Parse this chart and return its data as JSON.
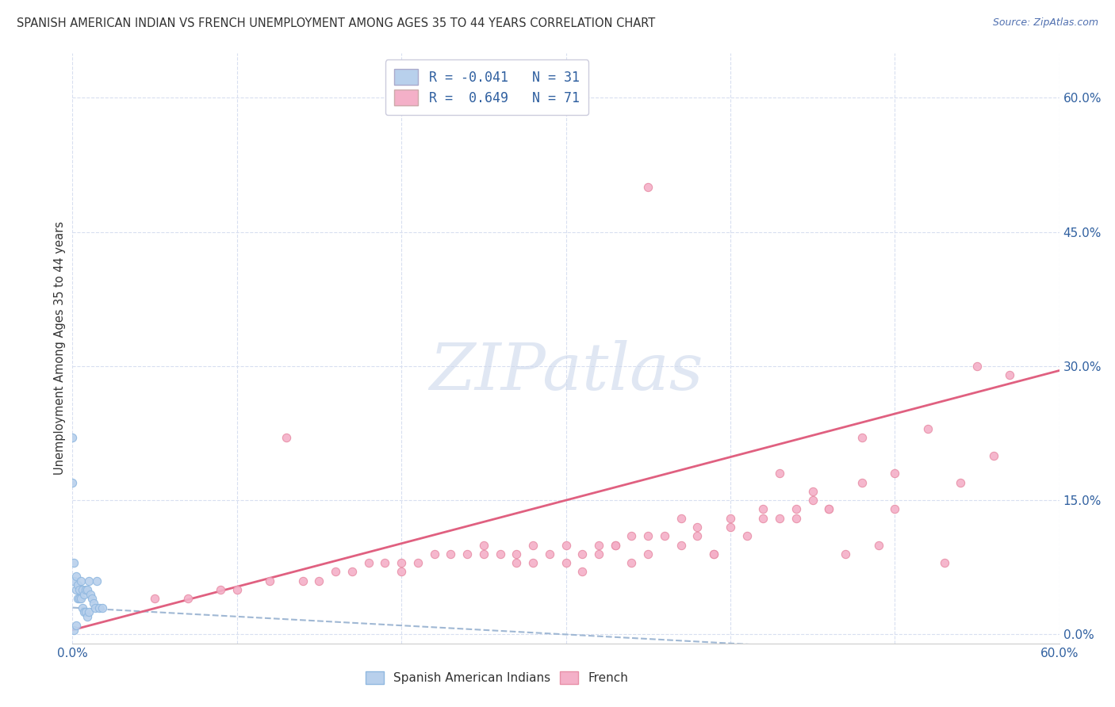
{
  "title": "SPANISH AMERICAN INDIAN VS FRENCH UNEMPLOYMENT AMONG AGES 35 TO 44 YEARS CORRELATION CHART",
  "source": "Source: ZipAtlas.com",
  "ylabel": "Unemployment Among Ages 35 to 44 years",
  "xlim": [
    0.0,
    0.6
  ],
  "ylim": [
    -0.01,
    0.65
  ],
  "plot_ylim": [
    -0.01,
    0.65
  ],
  "xticks": [
    0.0,
    0.1,
    0.2,
    0.3,
    0.4,
    0.5,
    0.6
  ],
  "xticklabels": [
    "0.0%",
    "",
    "",
    "",
    "",
    "",
    "60.0%"
  ],
  "right_yticks": [
    0.0,
    0.15,
    0.3,
    0.45,
    0.6
  ],
  "right_yticklabels": [
    "0.0%",
    "15.0%",
    "30.0%",
    "45.0%",
    "60.0%"
  ],
  "background_color": "#ffffff",
  "grid_color": "#d8dff0",
  "watermark": "ZIPatlas",
  "watermark_color": "#ccd8ec",
  "legend_line1": "R = -0.041   N = 31",
  "legend_line2": "R =  0.649   N = 71",
  "blue_fill": "#b8d0ec",
  "blue_edge": "#90b8e0",
  "pink_fill": "#f4b0c8",
  "pink_edge": "#e890a8",
  "trend_blue_color": "#a0b8d4",
  "trend_pink_color": "#e06080",
  "blue_scatter_x": [
    0.001,
    0.001,
    0.002,
    0.002,
    0.003,
    0.003,
    0.004,
    0.004,
    0.005,
    0.005,
    0.006,
    0.006,
    0.007,
    0.007,
    0.008,
    0.008,
    0.009,
    0.009,
    0.01,
    0.01,
    0.011,
    0.012,
    0.013,
    0.014,
    0.015,
    0.016,
    0.018,
    0.0,
    0.0,
    0.001,
    0.002
  ],
  "blue_scatter_y": [
    0.08,
    0.06,
    0.065,
    0.05,
    0.055,
    0.04,
    0.05,
    0.04,
    0.06,
    0.04,
    0.05,
    0.03,
    0.045,
    0.025,
    0.05,
    0.025,
    0.05,
    0.02,
    0.06,
    0.025,
    0.045,
    0.04,
    0.035,
    0.03,
    0.06,
    0.03,
    0.03,
    0.22,
    0.17,
    0.005,
    0.01
  ],
  "pink_scatter_x": [
    0.35,
    0.05,
    0.07,
    0.09,
    0.1,
    0.12,
    0.13,
    0.14,
    0.15,
    0.16,
    0.17,
    0.18,
    0.19,
    0.2,
    0.2,
    0.21,
    0.22,
    0.23,
    0.24,
    0.25,
    0.25,
    0.26,
    0.27,
    0.27,
    0.28,
    0.28,
    0.29,
    0.3,
    0.3,
    0.31,
    0.31,
    0.32,
    0.32,
    0.33,
    0.33,
    0.34,
    0.34,
    0.35,
    0.35,
    0.36,
    0.37,
    0.37,
    0.38,
    0.38,
    0.39,
    0.39,
    0.4,
    0.4,
    0.41,
    0.42,
    0.42,
    0.43,
    0.43,
    0.44,
    0.44,
    0.45,
    0.45,
    0.46,
    0.46,
    0.47,
    0.48,
    0.48,
    0.49,
    0.5,
    0.5,
    0.52,
    0.53,
    0.54,
    0.55,
    0.56,
    0.57
  ],
  "pink_scatter_y": [
    0.5,
    0.04,
    0.04,
    0.05,
    0.05,
    0.06,
    0.22,
    0.06,
    0.06,
    0.07,
    0.07,
    0.08,
    0.08,
    0.07,
    0.08,
    0.08,
    0.09,
    0.09,
    0.09,
    0.09,
    0.1,
    0.09,
    0.09,
    0.08,
    0.1,
    0.08,
    0.09,
    0.1,
    0.08,
    0.09,
    0.07,
    0.1,
    0.09,
    0.1,
    0.1,
    0.11,
    0.08,
    0.11,
    0.09,
    0.11,
    0.13,
    0.1,
    0.12,
    0.11,
    0.09,
    0.09,
    0.13,
    0.12,
    0.11,
    0.14,
    0.13,
    0.18,
    0.13,
    0.14,
    0.13,
    0.16,
    0.15,
    0.14,
    0.14,
    0.09,
    0.22,
    0.17,
    0.1,
    0.18,
    0.14,
    0.23,
    0.08,
    0.17,
    0.3,
    0.2,
    0.29
  ],
  "blue_trend": [
    0.0,
    0.6,
    0.03,
    -0.03
  ],
  "pink_trend": [
    0.0,
    0.6,
    0.005,
    0.295
  ]
}
